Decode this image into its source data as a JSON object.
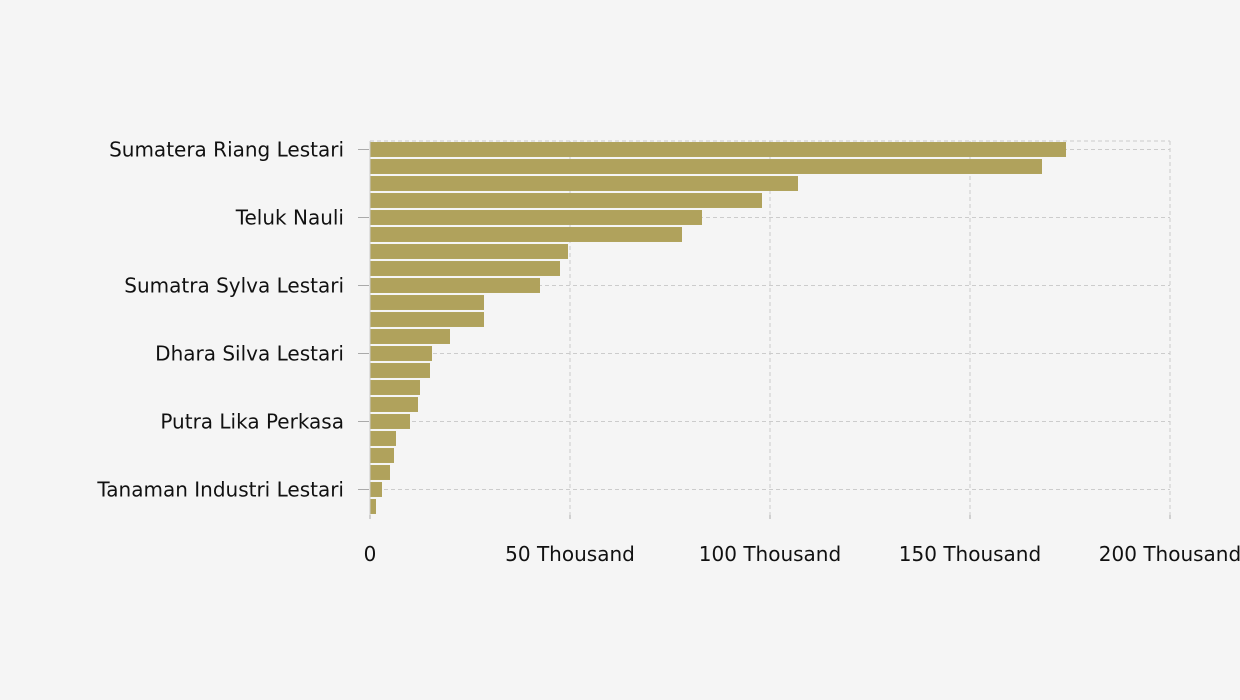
{
  "chart_data": {
    "type": "bar",
    "orientation": "horizontal",
    "categories": [
      "Sumatera Riang Lestari",
      "",
      "",
      "",
      "Teluk Nauli",
      "",
      "",
      "",
      "Sumatra Sylva Lestari",
      "",
      "",
      "",
      "Dhara Silva Lestari",
      "",
      "",
      "",
      "Putra Lika Perkasa",
      "",
      "",
      "",
      "Tanaman Industri Lestari",
      ""
    ],
    "values": [
      174000,
      168000,
      107000,
      98000,
      83000,
      78000,
      49500,
      47500,
      42500,
      28500,
      28500,
      20000,
      15500,
      15000,
      12500,
      12000,
      10000,
      6500,
      6000,
      5000,
      3000,
      1500
    ],
    "tick_labels_y": [
      "Sumatera Riang Lestari",
      "Teluk Nauli",
      "Sumatra Sylva Lestari",
      "Dhara Silva Lestari",
      "Putra Lika Perkasa",
      "Tanaman Industri Lestari"
    ],
    "xticks": [
      0,
      50000,
      100000,
      150000,
      200000
    ],
    "xtick_labels": [
      "0",
      "50 Thousand",
      "100 Thousand",
      "150 Thousand",
      "200 Thousand"
    ],
    "xlim": [
      0,
      200000
    ],
    "title": "",
    "xlabel": "",
    "ylabel": "",
    "grid": true,
    "bar_color": "#b0a25c",
    "background_color": "#f5f5f5",
    "grid_color": "#cccccc"
  }
}
